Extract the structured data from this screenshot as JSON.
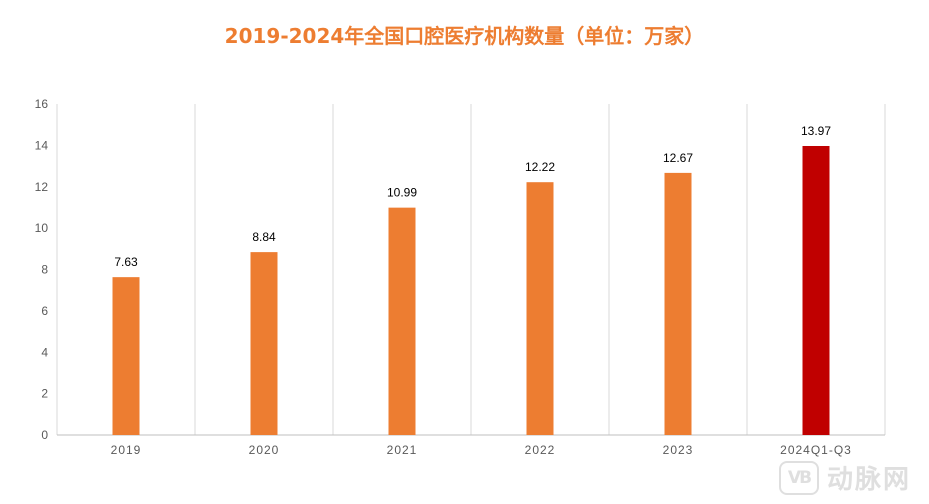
{
  "chart_data": {
    "type": "bar",
    "title": "2019-2024年全国口腔医疗机构数量（单位：万家）",
    "categories": [
      "2019",
      "2020",
      "2021",
      "2022",
      "2023",
      "2024Q1-Q3"
    ],
    "values": [
      7.63,
      8.84,
      10.99,
      12.22,
      12.67,
      13.97
    ],
    "value_labels": [
      "7.63",
      "8.84",
      "10.99",
      "12.22",
      "12.67",
      "13.97"
    ],
    "yticks": [
      0,
      2,
      4,
      6,
      8,
      10,
      12,
      14,
      16
    ],
    "ylim": [
      0,
      16
    ],
    "xlabel": "",
    "ylabel": "",
    "bar_colors": [
      "#ED7D31",
      "#ED7D31",
      "#ED7D31",
      "#ED7D31",
      "#ED7D31",
      "#C00000"
    ],
    "title_color": "#ED7D31"
  },
  "watermark": {
    "logo_text": "VB",
    "text": "动脉网"
  }
}
